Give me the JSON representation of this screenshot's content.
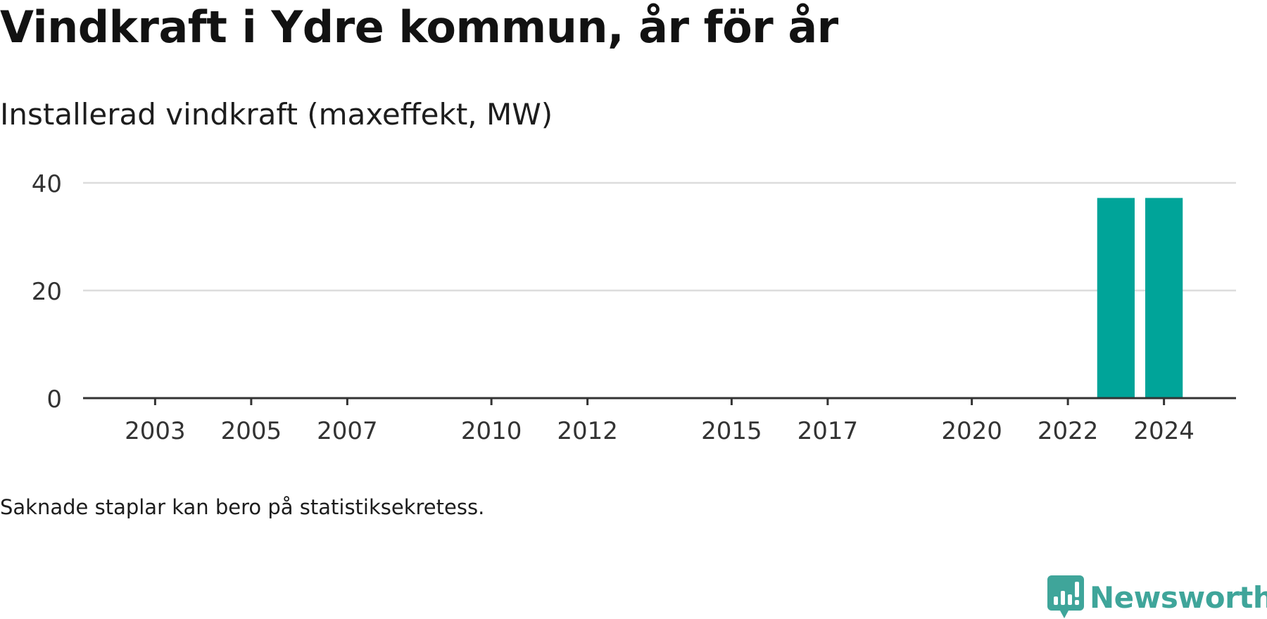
{
  "header": {
    "title": "Vindkraft i Ydre kommun, år för år",
    "subtitle": "Installerad vindkraft (maxeffekt, MW)"
  },
  "footer": {
    "note": "Saknade staplar kan bero på statistiksekretess.",
    "brand": "Newsworthy"
  },
  "colors": {
    "bar": "#00a499",
    "brand": "#3fa59a",
    "gridline": "#dcdcdc",
    "axis": "#333333",
    "text": "#333333"
  },
  "chart_data": {
    "type": "bar",
    "title": "Installerad vindkraft (maxeffekt, MW)",
    "xlabel": "",
    "ylabel": "",
    "x_range": [
      2001.5,
      2025.5
    ],
    "ylim": [
      0,
      40
    ],
    "yticks": [
      0,
      20,
      40
    ],
    "xticks": [
      2003,
      2005,
      2007,
      2010,
      2012,
      2015,
      2017,
      2020,
      2022,
      2024
    ],
    "grid": true,
    "legend": "none",
    "categories": [
      2023,
      2024
    ],
    "values": [
      37.2,
      37.2
    ]
  }
}
